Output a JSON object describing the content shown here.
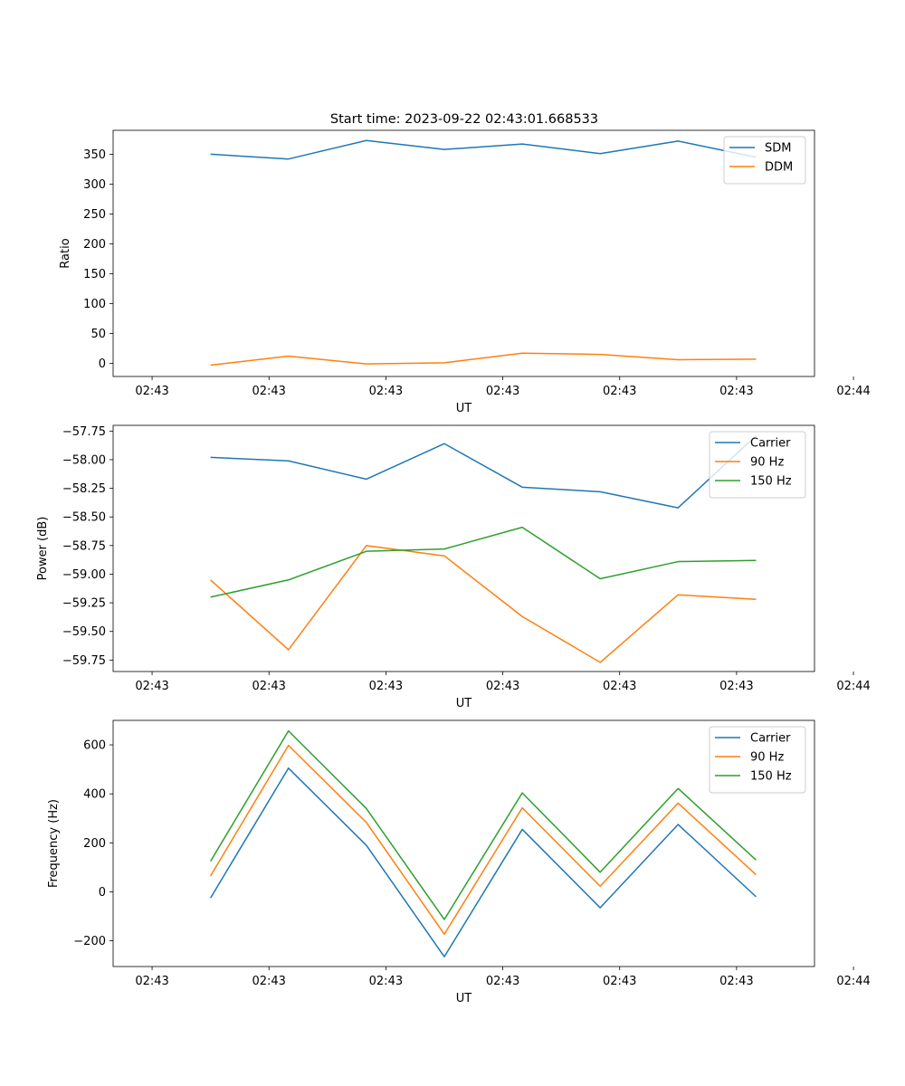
{
  "figure_title": "Start time: 2023-09-22 02:43:01.668533",
  "chart_data": [
    {
      "type": "line",
      "title": "Start time: 2023-09-22 02:43:01.668533",
      "xlabel": "UT",
      "ylabel": "Ratio",
      "x_tick_labels": [
        "02:43",
        "02:43",
        "02:43",
        "02:43",
        "02:43",
        "02:43",
        "02:44"
      ],
      "xlim": [
        -0.5,
        8.5
      ],
      "x_ticks": [
        0,
        1.5,
        3,
        4.5,
        6,
        7.5,
        9
      ],
      "x": [
        0.75,
        1.75,
        2.75,
        3.75,
        4.75,
        5.75,
        6.75,
        7.75
      ],
      "ylim": [
        -22,
        390
      ],
      "y_ticks": [
        0,
        50,
        100,
        150,
        200,
        250,
        300,
        350
      ],
      "legend_loc": "top-right",
      "series": [
        {
          "name": "SDM",
          "color": "#1f77b4",
          "values": [
            350,
            342,
            373,
            358,
            367,
            351,
            372,
            345
          ]
        },
        {
          "name": "DDM",
          "color": "#ff7f0e",
          "values": [
            -3,
            12,
            -1,
            1,
            17,
            15,
            6,
            7
          ]
        }
      ]
    },
    {
      "type": "line",
      "title": "",
      "xlabel": "UT",
      "ylabel": "Power (dB)",
      "x_tick_labels": [
        "02:43",
        "02:43",
        "02:43",
        "02:43",
        "02:43",
        "02:43",
        "02:44"
      ],
      "xlim": [
        -0.5,
        8.5
      ],
      "x_ticks": [
        0,
        1.5,
        3,
        4.5,
        6,
        7.5,
        9
      ],
      "x": [
        0.75,
        1.75,
        2.75,
        3.75,
        4.75,
        5.75,
        6.75,
        7.75
      ],
      "ylim": [
        -59.85,
        -57.7
      ],
      "y_ticks": [
        -59.75,
        -59.5,
        -59.25,
        -59.0,
        -58.75,
        -58.5,
        -58.25,
        -58.0,
        -57.75
      ],
      "y_tick_labels": [
        "−59.75",
        "−59.50",
        "−59.25",
        "−59.00",
        "−58.75",
        "−58.50",
        "−58.25",
        "−58.00",
        "−57.75"
      ],
      "legend_loc": "top-right",
      "series": [
        {
          "name": "Carrier",
          "color": "#1f77b4",
          "values": [
            -57.98,
            -58.01,
            -58.17,
            -57.86,
            -58.24,
            -58.28,
            -58.42,
            -57.79
          ]
        },
        {
          "name": "90 Hz",
          "color": "#ff7f0e",
          "values": [
            -59.05,
            -59.66,
            -58.75,
            -58.84,
            -59.37,
            -59.77,
            -59.18,
            -59.22
          ]
        },
        {
          "name": "150 Hz",
          "color": "#2ca02c",
          "values": [
            -59.2,
            -59.05,
            -58.8,
            -58.78,
            -58.59,
            -59.04,
            -58.89,
            -58.88
          ]
        }
      ]
    },
    {
      "type": "line",
      "title": "",
      "xlabel": "UT",
      "ylabel": "Frequency (Hz)",
      "x_tick_labels": [
        "02:43",
        "02:43",
        "02:43",
        "02:43",
        "02:43",
        "02:43",
        "02:44"
      ],
      "xlim": [
        -0.5,
        8.5
      ],
      "x_ticks": [
        0,
        1.5,
        3,
        4.5,
        6,
        7.5,
        9
      ],
      "x": [
        0.75,
        1.75,
        2.75,
        3.75,
        4.75,
        5.75,
        6.75,
        7.75
      ],
      "ylim": [
        -305,
        700
      ],
      "y_ticks": [
        -200,
        0,
        200,
        400,
        600
      ],
      "y_tick_labels": [
        "−200",
        "0",
        "200",
        "400",
        "600"
      ],
      "legend_loc": "top-right",
      "series": [
        {
          "name": "Carrier",
          "color": "#1f77b4",
          "values": [
            -25,
            505,
            190,
            -265,
            255,
            -65,
            275,
            -20
          ]
        },
        {
          "name": "90 Hz",
          "color": "#ff7f0e",
          "values": [
            65,
            598,
            283,
            -173,
            343,
            23,
            362,
            70
          ]
        },
        {
          "name": "150 Hz",
          "color": "#2ca02c",
          "values": [
            125,
            657,
            340,
            -113,
            404,
            80,
            422,
            130
          ]
        }
      ]
    }
  ]
}
